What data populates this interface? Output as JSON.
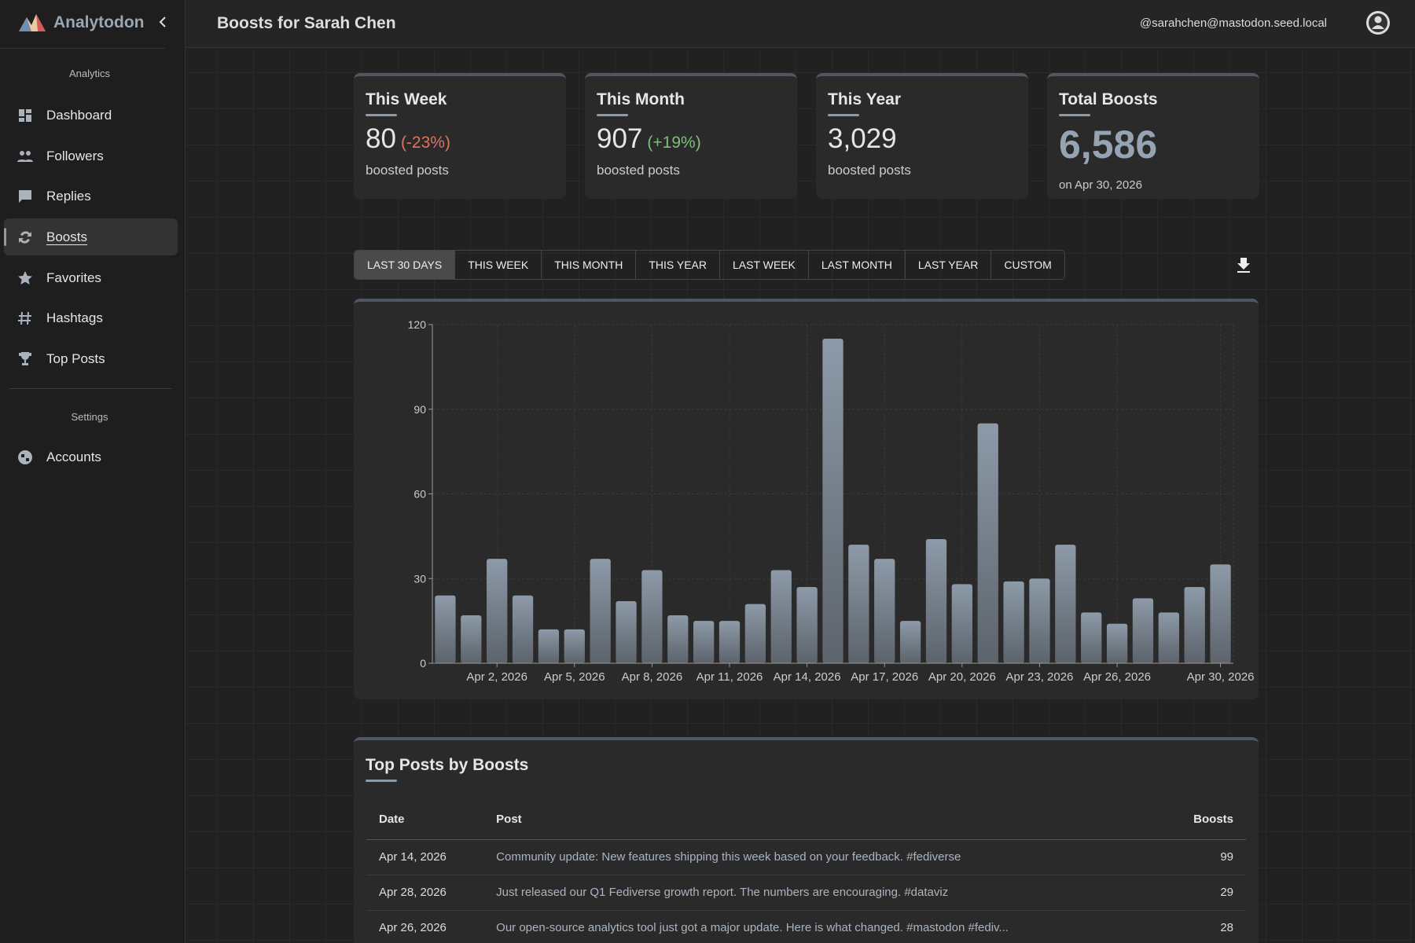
{
  "app": {
    "name": "Analytodon"
  },
  "header": {
    "title": "Boosts for Sarah Chen",
    "account": "@sarahchen@mastodon.seed.local"
  },
  "sidebar": {
    "sections": [
      {
        "title": "Analytics",
        "items": [
          "Dashboard",
          "Followers",
          "Replies",
          "Boosts",
          "Favorites",
          "Hashtags",
          "Top Posts"
        ]
      },
      {
        "title": "Settings",
        "items": [
          "Accounts"
        ]
      }
    ]
  },
  "stats": [
    {
      "title": "This Week",
      "value": "80",
      "change": "(-23%)",
      "caption": "boosted posts"
    },
    {
      "title": "This Month",
      "value": "907",
      "change": "(+19%)",
      "caption": "boosted posts"
    },
    {
      "title": "This Year",
      "value": "3,029",
      "caption": "boosted posts"
    },
    {
      "title": "Total Boosts",
      "value": "6,586",
      "caption": "on Apr 30, 2026"
    }
  ],
  "tabs": [
    "LAST 30 DAYS",
    "THIS WEEK",
    "THIS MONTH",
    "THIS YEAR",
    "LAST WEEK",
    "LAST MONTH",
    "LAST YEAR",
    "CUSTOM"
  ],
  "chart_data": {
    "type": "bar",
    "categories": [
      null,
      null,
      "Apr 2, 2026",
      null,
      null,
      "Apr 5, 2026",
      null,
      null,
      "Apr 8, 2026",
      null,
      null,
      "Apr 11, 2026",
      null,
      null,
      "Apr 14, 2026",
      null,
      null,
      "Apr 17, 2026",
      null,
      null,
      "Apr 20, 2026",
      null,
      null,
      "Apr 23, 2026",
      null,
      null,
      "Apr 26, 2026",
      null,
      null,
      null,
      "Apr 30, 2026"
    ],
    "values": [
      24,
      17,
      37,
      24,
      12,
      12,
      37,
      22,
      33,
      17,
      15,
      15,
      21,
      33,
      27,
      115,
      42,
      37,
      15,
      44,
      28,
      85,
      29,
      30,
      42,
      18,
      14,
      23,
      18,
      27,
      35
    ],
    "color": "#8d9aa8",
    "ylim": [
      0,
      120
    ],
    "yticks": [
      0,
      30,
      60,
      90,
      120
    ],
    "grid": true
  },
  "top_posts": {
    "title": "Top Posts by Boosts",
    "columns": [
      "Date",
      "Post",
      "Boosts"
    ],
    "rows": [
      [
        "Apr 14, 2026",
        "Community update: New features shipping this week based on your feedback. #fediverse",
        99
      ],
      [
        "Apr 28, 2026",
        "Just released our Q1 Fediverse growth report. The numbers are encouraging. #dataviz",
        29
      ],
      [
        "Apr 26, 2026",
        "Our open-source analytics tool just got a major update. Here is what changed. #mastodon #fediv...",
        28
      ]
    ]
  }
}
